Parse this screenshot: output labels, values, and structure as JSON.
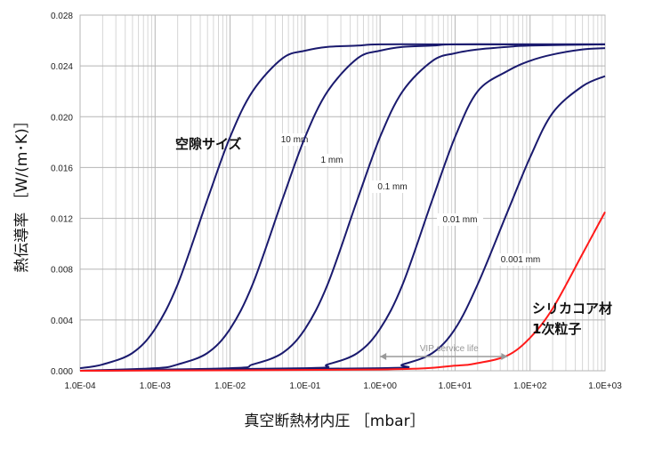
{
  "chart_data": {
    "type": "line",
    "xlabel": "真空断熱材内圧 ［mbar］",
    "ylabel": "熱伝導率 ［W/(m･K)］",
    "x_scale": "log",
    "xlim": [
      0.0001,
      1000
    ],
    "ylim": [
      0,
      0.028
    ],
    "x_ticks": [
      "1.0E-04",
      "1.0E-03",
      "1.0E-02",
      "1.0E-01",
      "1.0E+00",
      "1.0E+01",
      "1.0E+02",
      "1.0E+03"
    ],
    "y_ticks": [
      "0.000",
      "0.004",
      "0.008",
      "0.012",
      "0.016",
      "0.020",
      "0.024",
      "0.028"
    ],
    "grid": true,
    "pore_size_label": "空隙サイズ",
    "silica_label_line1": "シリカコア材",
    "silica_label_line2": "1次粒子",
    "vip_label": "VIP service life",
    "vip_range": [
      1,
      50
    ],
    "series": [
      {
        "name": "10 mm",
        "color": "#1a1a6e",
        "x": [
          0.0001,
          0.0002,
          0.0005,
          0.001,
          0.002,
          0.005,
          0.01,
          0.02,
          0.05,
          0.1,
          0.2,
          0.5,
          1,
          10,
          100,
          1000
        ],
        "y": [
          0.0002,
          0.0005,
          0.0014,
          0.0033,
          0.0068,
          0.0135,
          0.0184,
          0.022,
          0.0246,
          0.0252,
          0.0255,
          0.0256,
          0.0257,
          0.0257,
          0.0257,
          0.0257
        ]
      },
      {
        "name": "1 mm",
        "color": "#1a1a6e",
        "x": [
          0.0001,
          0.001,
          0.002,
          0.005,
          0.01,
          0.02,
          0.05,
          0.1,
          0.2,
          0.5,
          1,
          2,
          5,
          10,
          100,
          1000
        ],
        "y": [
          0.0,
          0.0002,
          0.0005,
          0.0014,
          0.0033,
          0.0068,
          0.0135,
          0.0184,
          0.022,
          0.0246,
          0.0252,
          0.0255,
          0.0256,
          0.0257,
          0.0257,
          0.0257
        ]
      },
      {
        "name": "0.1 mm",
        "color": "#1a1a6e",
        "x": [
          0.0001,
          0.01,
          0.02,
          0.05,
          0.1,
          0.2,
          0.5,
          1,
          2,
          5,
          10,
          20,
          50,
          100,
          1000
        ],
        "y": [
          0.0,
          0.0002,
          0.0005,
          0.0014,
          0.0033,
          0.0068,
          0.0135,
          0.0184,
          0.022,
          0.0244,
          0.025,
          0.0253,
          0.0255,
          0.0256,
          0.0257
        ]
      },
      {
        "name": "0.01 mm",
        "color": "#1a1a6e",
        "x": [
          0.0001,
          0.1,
          0.2,
          0.5,
          1,
          2,
          5,
          10,
          20,
          50,
          100,
          200,
          500,
          1000
        ],
        "y": [
          0.0,
          0.0002,
          0.0005,
          0.0014,
          0.0033,
          0.0068,
          0.0135,
          0.0184,
          0.022,
          0.0236,
          0.0244,
          0.0249,
          0.0253,
          0.0254
        ]
      },
      {
        "name": "0.001 mm",
        "color": "#1a1a6e",
        "x": [
          0.0001,
          1,
          2,
          5,
          10,
          20,
          50,
          100,
          200,
          500,
          1000
        ],
        "y": [
          0.0,
          0.0002,
          0.0005,
          0.0014,
          0.0033,
          0.0068,
          0.0125,
          0.0168,
          0.0203,
          0.0224,
          0.0232
        ]
      },
      {
        "name": "",
        "color": "#ff1a1a",
        "x": [
          0.0001,
          1,
          10,
          20,
          50,
          100,
          200,
          500,
          1000
        ],
        "y": [
          0.0,
          0.0001,
          0.0004,
          0.0006,
          0.0012,
          0.0026,
          0.0049,
          0.0092,
          0.0125
        ]
      }
    ]
  }
}
